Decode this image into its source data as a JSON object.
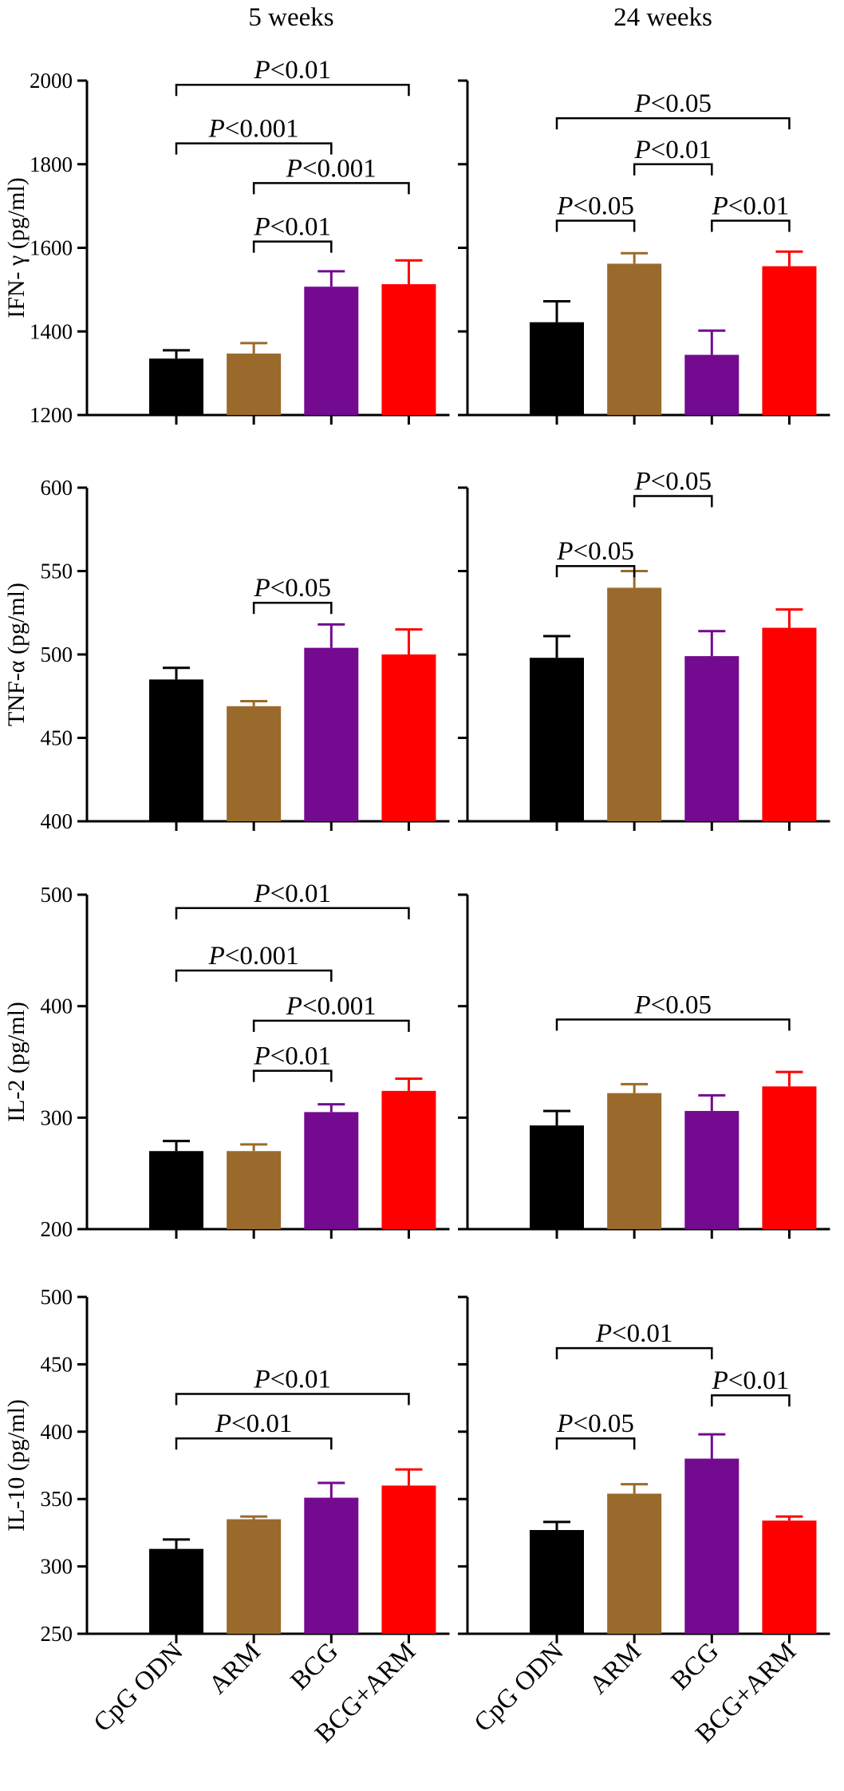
{
  "column_titles": [
    "5 weeks",
    "24 weeks"
  ],
  "categories": [
    "CpG ODN",
    "ARM",
    "BCG",
    "BCG+ARM"
  ],
  "colors": {
    "CpG ODN": "#000000",
    "ARM": "#9a6a2c",
    "BCG": "#730a8f",
    "BCG+ARM": "#ff0000",
    "axis": "#000000"
  },
  "chart_data": [
    {
      "type": "bar",
      "row": 0,
      "col": 0,
      "title": "5 weeks",
      "ylabel": "IFN- γ (pg/ml)",
      "ylim": [
        1200,
        2000
      ],
      "yticks": [
        1200,
        1400,
        1600,
        1800,
        2000
      ],
      "categories": [
        "CpG ODN",
        "ARM",
        "BCG",
        "BCG+ARM"
      ],
      "values": [
        1335,
        1347,
        1507,
        1513
      ],
      "errors": [
        20,
        25,
        37,
        57
      ],
      "comparisons": [
        {
          "groups": [
            0,
            3
          ],
          "label": "P<0.01",
          "level": 1990
        },
        {
          "groups": [
            0,
            2
          ],
          "label": "P<0.001",
          "level": 1850
        },
        {
          "groups": [
            1,
            3
          ],
          "label": "P<0.001",
          "level": 1755
        },
        {
          "groups": [
            1,
            2
          ],
          "label": "P<0.01",
          "level": 1615
        }
      ]
    },
    {
      "type": "bar",
      "row": 0,
      "col": 1,
      "title": "24 weeks",
      "ylabel": "",
      "ylim": [
        1200,
        2000
      ],
      "yticks": [
        1200,
        1400,
        1600,
        1800,
        2000
      ],
      "categories": [
        "CpG ODN",
        "ARM",
        "BCG",
        "BCG+ARM"
      ],
      "values": [
        1422,
        1562,
        1344,
        1556
      ],
      "errors": [
        50,
        25,
        58,
        35
      ],
      "comparisons": [
        {
          "groups": [
            0,
            3
          ],
          "label": "P<0.05",
          "level": 1910
        },
        {
          "groups": [
            1,
            2
          ],
          "label": "P<0.01",
          "level": 1800
        },
        {
          "groups": [
            0,
            1
          ],
          "label": "P<0.05",
          "level": 1665
        },
        {
          "groups": [
            2,
            3
          ],
          "label": "P<0.01",
          "level": 1665
        }
      ]
    },
    {
      "type": "bar",
      "row": 1,
      "col": 0,
      "title": "",
      "ylabel": "TNF-α (pg/ml)",
      "ylim": [
        400,
        600
      ],
      "yticks": [
        400,
        450,
        500,
        550,
        600
      ],
      "categories": [
        "CpG ODN",
        "ARM",
        "BCG",
        "BCG+ARM"
      ],
      "values": [
        485,
        469,
        504,
        500
      ],
      "errors": [
        7,
        3,
        14,
        15
      ],
      "comparisons": [
        {
          "groups": [
            1,
            2
          ],
          "label": "P<0.05",
          "level": 531
        }
      ]
    },
    {
      "type": "bar",
      "row": 1,
      "col": 1,
      "title": "",
      "ylabel": "",
      "ylim": [
        400,
        600
      ],
      "yticks": [
        400,
        450,
        500,
        550,
        600
      ],
      "categories": [
        "CpG ODN",
        "ARM",
        "BCG",
        "BCG+ARM"
      ],
      "values": [
        498,
        540,
        499,
        516
      ],
      "errors": [
        13,
        10,
        15,
        11
      ],
      "comparisons": [
        {
          "groups": [
            1,
            2
          ],
          "label": "P<0.05",
          "level": 595
        },
        {
          "groups": [
            0,
            1
          ],
          "label": "P<0.05",
          "level": 553
        }
      ]
    },
    {
      "type": "bar",
      "row": 2,
      "col": 0,
      "title": "",
      "ylabel": "IL-2 (pg/ml)",
      "ylim": [
        200,
        500
      ],
      "yticks": [
        200,
        300,
        400,
        500
      ],
      "categories": [
        "CpG ODN",
        "ARM",
        "BCG",
        "BCG+ARM"
      ],
      "values": [
        270,
        270,
        305,
        324
      ],
      "errors": [
        9,
        6,
        7,
        11
      ],
      "comparisons": [
        {
          "groups": [
            0,
            3
          ],
          "label": "P<0.01",
          "level": 488
        },
        {
          "groups": [
            0,
            2
          ],
          "label": "P<0.001",
          "level": 432
        },
        {
          "groups": [
            1,
            3
          ],
          "label": "P<0.001",
          "level": 387
        },
        {
          "groups": [
            1,
            2
          ],
          "label": "P<0.01",
          "level": 342
        }
      ]
    },
    {
      "type": "bar",
      "row": 2,
      "col": 1,
      "title": "",
      "ylabel": "",
      "ylim": [
        200,
        500
      ],
      "yticks": [
        200,
        300,
        400,
        500
      ],
      "categories": [
        "CpG ODN",
        "ARM",
        "BCG",
        "BCG+ARM"
      ],
      "values": [
        293,
        322,
        306,
        328
      ],
      "errors": [
        13,
        8,
        14,
        13
      ],
      "comparisons": [
        {
          "groups": [
            0,
            3
          ],
          "label": "P<0.05",
          "level": 388
        }
      ]
    },
    {
      "type": "bar",
      "row": 3,
      "col": 0,
      "title": "",
      "ylabel": "IL-10 (pg/ml)",
      "ylim": [
        250,
        500
      ],
      "yticks": [
        250,
        300,
        350,
        400,
        450,
        500
      ],
      "categories": [
        "CpG ODN",
        "ARM",
        "BCG",
        "BCG+ARM"
      ],
      "values": [
        313,
        335,
        351,
        360
      ],
      "errors": [
        7,
        2,
        11,
        12
      ],
      "comparisons": [
        {
          "groups": [
            0,
            3
          ],
          "label": "P<0.01",
          "level": 428
        },
        {
          "groups": [
            0,
            2
          ],
          "label": "P<0.01",
          "level": 395
        }
      ]
    },
    {
      "type": "bar",
      "row": 3,
      "col": 1,
      "title": "",
      "ylabel": "",
      "ylim": [
        250,
        500
      ],
      "yticks": [
        250,
        300,
        350,
        400,
        450,
        500
      ],
      "categories": [
        "CpG ODN",
        "ARM",
        "BCG",
        "BCG+ARM"
      ],
      "values": [
        327,
        354,
        380,
        334
      ],
      "errors": [
        6,
        7,
        18,
        3
      ],
      "comparisons": [
        {
          "groups": [
            0,
            2
          ],
          "label": "P<0.01",
          "level": 462
        },
        {
          "groups": [
            2,
            3
          ],
          "label": "P<0.01",
          "level": 427
        },
        {
          "groups": [
            0,
            1
          ],
          "label": "P<0.05",
          "level": 395
        }
      ]
    }
  ]
}
